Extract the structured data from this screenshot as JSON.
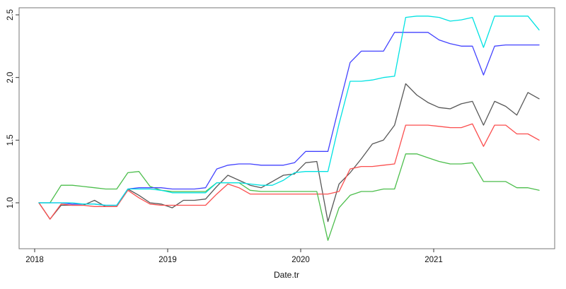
{
  "figure": {
    "background": "#FFFFFF",
    "box_stroke": "#777777"
  },
  "chart_data": {
    "type": "line",
    "title": "",
    "xlabel": "Date.tr",
    "ylabel": "",
    "grid": false,
    "legend": "none",
    "ylim": [
      0.63,
      2.56
    ],
    "y_ticks": [
      {
        "v": 1.0,
        "label": "1.0"
      },
      {
        "v": 1.5,
        "label": "1.5"
      },
      {
        "v": 2.0,
        "label": "2.0"
      },
      {
        "v": 2.5,
        "label": "2.5"
      }
    ],
    "x_ticks": [
      {
        "v": 2018,
        "label": "2018"
      },
      {
        "v": 2019,
        "label": "2019"
      },
      {
        "v": 2020,
        "label": "2020"
      },
      {
        "v": 2021,
        "label": "2021"
      }
    ],
    "x": [
      "2018-01",
      "2018-02",
      "2018-03",
      "2018-04",
      "2018-05",
      "2018-06",
      "2018-07",
      "2018-08",
      "2018-09",
      "2018-10",
      "2018-11",
      "2018-12",
      "2019-01",
      "2019-02",
      "2019-03",
      "2019-04",
      "2019-05",
      "2019-06",
      "2019-07",
      "2019-08",
      "2019-09",
      "2019-10",
      "2019-11",
      "2019-12",
      "2020-01",
      "2020-02",
      "2020-03",
      "2020-04",
      "2020-05",
      "2020-06",
      "2020-07",
      "2020-08",
      "2020-09",
      "2020-10",
      "2020-11",
      "2020-12",
      "2021-01",
      "2021-02",
      "2021-03",
      "2021-04",
      "2021-05",
      "2021-06",
      "2021-07",
      "2021-08",
      "2021-09",
      "2021-10"
    ],
    "series": [
      {
        "name": "gray-series",
        "color": "#575757",
        "values": [
          1.0,
          0.87,
          0.98,
          0.98,
          0.98,
          1.02,
          0.97,
          0.97,
          1.11,
          1.06,
          1.0,
          0.99,
          0.96,
          1.02,
          1.02,
          1.03,
          1.13,
          1.22,
          1.18,
          1.14,
          1.12,
          1.17,
          1.22,
          1.23,
          1.32,
          1.33,
          0.85,
          1.15,
          1.24,
          1.35,
          1.47,
          1.5,
          1.62,
          1.95,
          1.86,
          1.8,
          1.76,
          1.75,
          1.79,
          1.81,
          1.62,
          1.81,
          1.77,
          1.7,
          1.88,
          1.83
        ]
      },
      {
        "name": "red-series",
        "color": "#FB4E4E",
        "values": [
          1.0,
          0.87,
          0.99,
          0.98,
          0.98,
          0.97,
          0.97,
          0.97,
          1.1,
          1.04,
          0.99,
          0.98,
          0.98,
          0.98,
          0.98,
          0.98,
          1.07,
          1.15,
          1.12,
          1.07,
          1.07,
          1.07,
          1.07,
          1.07,
          1.07,
          1.07,
          1.07,
          1.09,
          1.27,
          1.29,
          1.29,
          1.3,
          1.31,
          1.62,
          1.62,
          1.62,
          1.61,
          1.6,
          1.6,
          1.63,
          1.45,
          1.62,
          1.62,
          1.55,
          1.55,
          1.5
        ]
      },
      {
        "name": "green-series",
        "color": "#4CBE4C",
        "values": [
          1.0,
          1.0,
          1.14,
          1.14,
          1.13,
          1.12,
          1.11,
          1.11,
          1.24,
          1.25,
          1.13,
          1.1,
          1.09,
          1.09,
          1.09,
          1.09,
          1.16,
          1.16,
          1.16,
          1.1,
          1.09,
          1.09,
          1.09,
          1.09,
          1.09,
          1.09,
          0.7,
          0.96,
          1.06,
          1.09,
          1.09,
          1.11,
          1.11,
          1.39,
          1.39,
          1.36,
          1.33,
          1.31,
          1.31,
          1.32,
          1.17,
          1.17,
          1.17,
          1.12,
          1.12,
          1.1
        ]
      },
      {
        "name": "blue-series",
        "color": "#4242FF",
        "values": [
          1.0,
          1.0,
          1.0,
          0.99,
          0.99,
          0.99,
          0.98,
          0.98,
          1.11,
          1.12,
          1.12,
          1.12,
          1.11,
          1.11,
          1.11,
          1.12,
          1.27,
          1.3,
          1.31,
          1.31,
          1.3,
          1.3,
          1.3,
          1.32,
          1.41,
          1.41,
          1.41,
          1.77,
          2.12,
          2.21,
          2.21,
          2.21,
          2.36,
          2.36,
          2.36,
          2.36,
          2.3,
          2.27,
          2.25,
          2.25,
          2.02,
          2.25,
          2.26,
          2.26,
          2.26,
          2.26
        ]
      },
      {
        "name": "cyan-series",
        "color": "#00E2E2",
        "values": [
          1.0,
          1.0,
          1.0,
          1.0,
          0.99,
          0.99,
          0.98,
          0.98,
          1.11,
          1.11,
          1.11,
          1.1,
          1.08,
          1.08,
          1.08,
          1.08,
          1.16,
          1.16,
          1.16,
          1.15,
          1.14,
          1.14,
          1.18,
          1.24,
          1.25,
          1.25,
          1.25,
          1.63,
          1.97,
          1.97,
          1.98,
          2.0,
          2.01,
          2.48,
          2.49,
          2.49,
          2.48,
          2.45,
          2.46,
          2.48,
          2.24,
          2.49,
          2.49,
          2.49,
          2.49,
          2.38
        ]
      }
    ]
  }
}
